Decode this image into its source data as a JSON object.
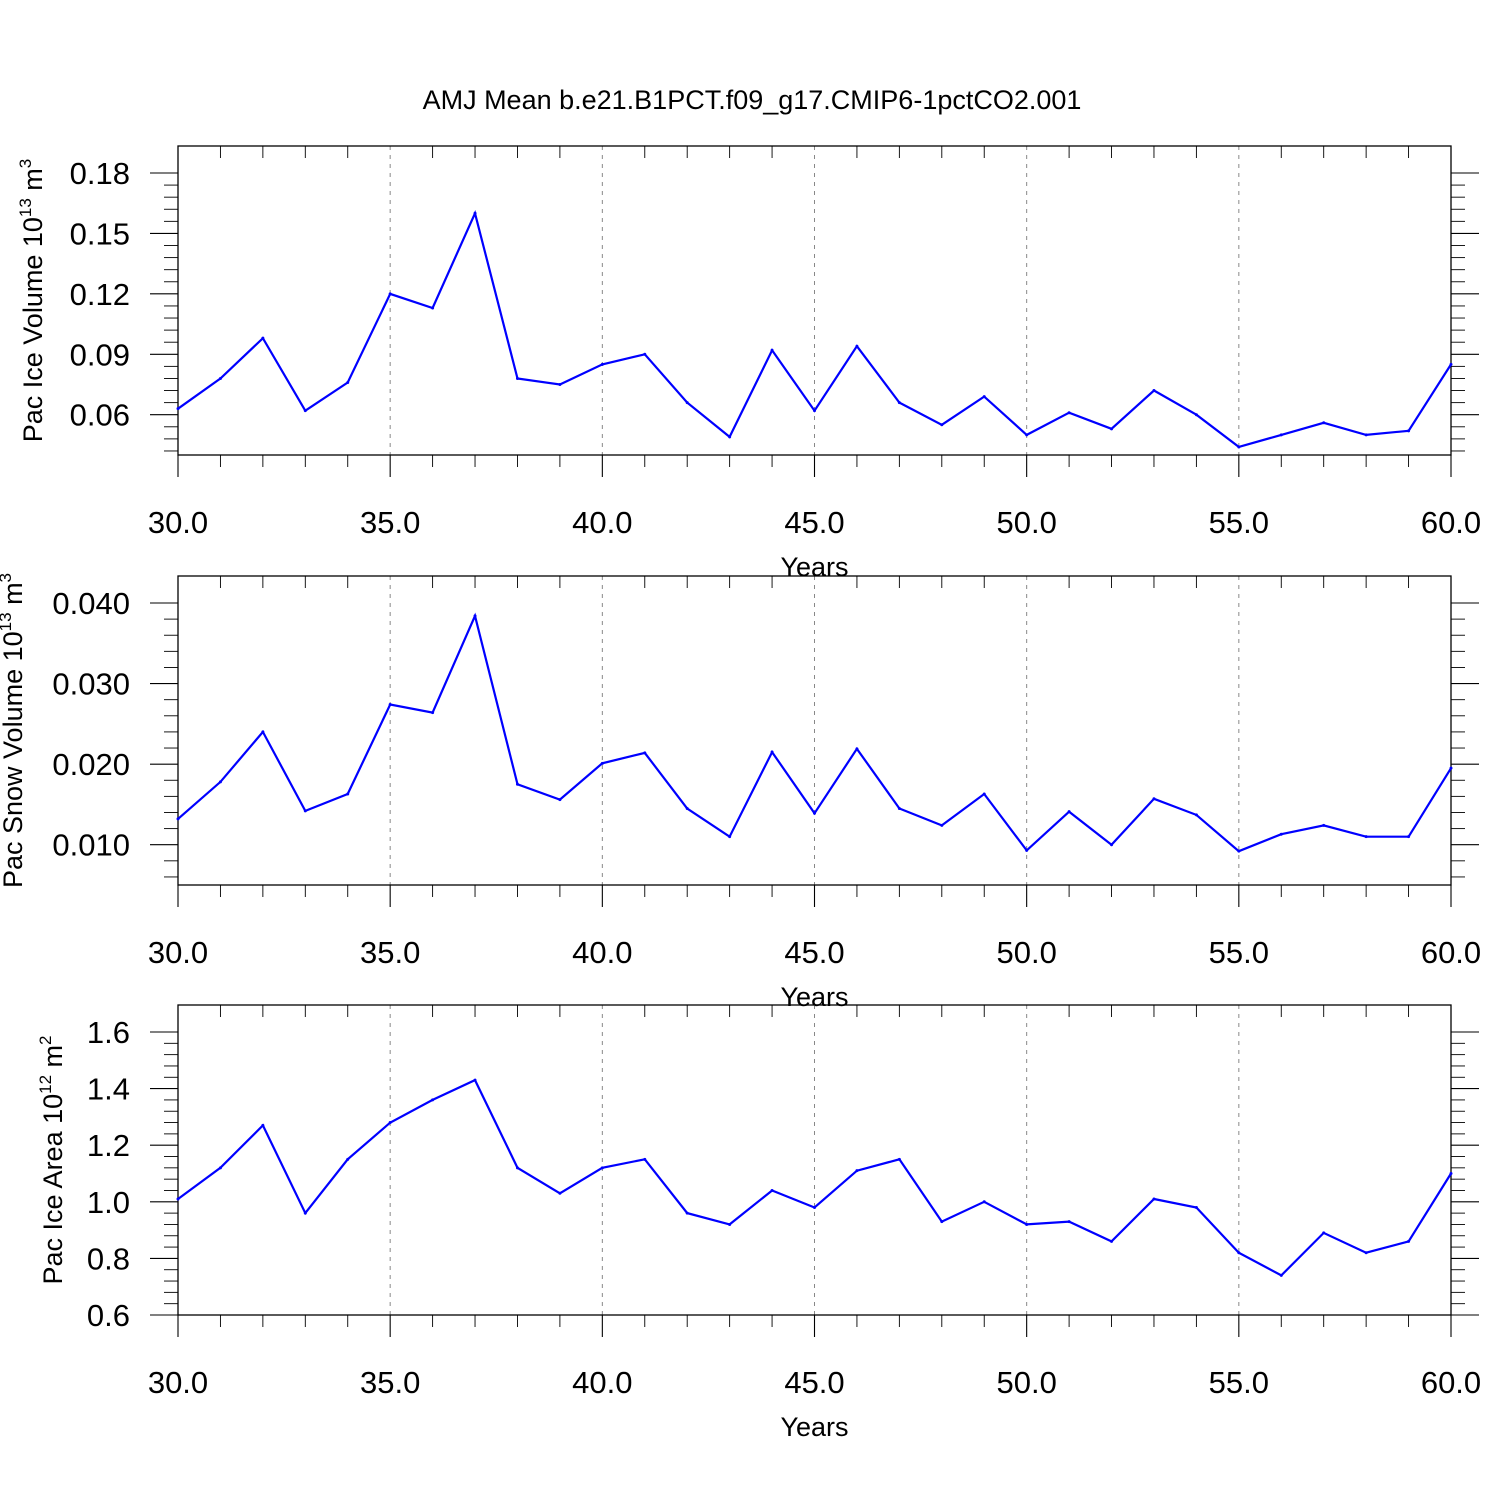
{
  "title": "AMJ Mean b.e21.B1PCT.f09_g17.CMIP6-1pctCO2.001",
  "chart_data": [
    {
      "type": "line",
      "ylabel_main": "Pac Ice Volume 10",
      "ylabel_exp": "13",
      "ylabel_unit": " m",
      "ylabel_unit_exp": "3",
      "xlabel": "Years",
      "xlim": [
        30,
        60
      ],
      "ylim": [
        0.04,
        0.18
      ],
      "yticks": [
        0.06,
        0.09,
        0.12,
        0.15,
        0.18
      ],
      "ytick_labels": [
        "0.06",
        "0.09",
        "0.12",
        "0.15",
        "0.18"
      ],
      "xticks": [
        30,
        35,
        40,
        45,
        50,
        55,
        60
      ],
      "xtick_labels": [
        "30.0",
        "35.0",
        "40.0",
        "45.0",
        "50.0",
        "55.0",
        "60.0"
      ],
      "grid": "dashed vertical at major x ticks",
      "x": [
        30,
        31,
        32,
        33,
        34,
        35,
        36,
        37,
        38,
        39,
        40,
        41,
        42,
        43,
        44,
        45,
        46,
        47,
        48,
        49,
        50,
        51,
        52,
        53,
        54,
        55,
        56,
        57,
        58,
        59,
        60
      ],
      "values": [
        0.063,
        0.078,
        0.098,
        0.062,
        0.076,
        0.12,
        0.113,
        0.16,
        0.078,
        0.075,
        0.085,
        0.09,
        0.066,
        0.049,
        0.092,
        0.062,
        0.094,
        0.066,
        0.055,
        0.069,
        0.05,
        0.061,
        0.053,
        0.072,
        0.06,
        0.044,
        0.05,
        0.056,
        0.05,
        0.052,
        0.085
      ],
      "color": "#0000ff"
    },
    {
      "type": "line",
      "ylabel_main": "Pac Snow Volume 10",
      "ylabel_exp": "13",
      "ylabel_unit": " m",
      "ylabel_unit_exp": "3",
      "xlabel": "Years",
      "xlim": [
        30,
        60
      ],
      "ylim": [
        0.005,
        0.04
      ],
      "yticks": [
        0.01,
        0.02,
        0.03,
        0.04
      ],
      "ytick_labels": [
        "0.010",
        "0.020",
        "0.030",
        "0.040"
      ],
      "xticks": [
        30,
        35,
        40,
        45,
        50,
        55,
        60
      ],
      "xtick_labels": [
        "30.0",
        "35.0",
        "40.0",
        "45.0",
        "50.0",
        "55.0",
        "60.0"
      ],
      "grid": "dashed vertical at major x ticks",
      "x": [
        30,
        31,
        32,
        33,
        34,
        35,
        36,
        37,
        38,
        39,
        40,
        41,
        42,
        43,
        44,
        45,
        46,
        47,
        48,
        49,
        50,
        51,
        52,
        53,
        54,
        55,
        56,
        57,
        58,
        59,
        60
      ],
      "values": [
        0.0132,
        0.0178,
        0.024,
        0.0142,
        0.0163,
        0.0274,
        0.0264,
        0.0384,
        0.0175,
        0.0156,
        0.0201,
        0.0214,
        0.0145,
        0.011,
        0.0215,
        0.0139,
        0.0219,
        0.0145,
        0.0124,
        0.0163,
        0.0093,
        0.0141,
        0.01,
        0.0157,
        0.0137,
        0.0092,
        0.0113,
        0.0124,
        0.011,
        0.011,
        0.0195
      ],
      "color": "#0000ff"
    },
    {
      "type": "line",
      "ylabel_main": "Pac Ice Area 10",
      "ylabel_exp": "12",
      "ylabel_unit": " m",
      "ylabel_unit_exp": "2",
      "xlabel": "Years",
      "xlim": [
        30,
        60
      ],
      "ylim": [
        0.6,
        1.6
      ],
      "yticks": [
        0.6,
        0.8,
        1.0,
        1.2,
        1.4,
        1.6
      ],
      "ytick_labels": [
        "0.6",
        "0.8",
        "1.0",
        "1.2",
        "1.4",
        "1.6"
      ],
      "xticks": [
        30,
        35,
        40,
        45,
        50,
        55,
        60
      ],
      "xtick_labels": [
        "30.0",
        "35.0",
        "40.0",
        "45.0",
        "50.0",
        "55.0",
        "60.0"
      ],
      "grid": "dashed vertical at major x ticks",
      "x": [
        30,
        31,
        32,
        33,
        34,
        35,
        36,
        37,
        38,
        39,
        40,
        41,
        42,
        43,
        44,
        45,
        46,
        47,
        48,
        49,
        50,
        51,
        52,
        53,
        54,
        55,
        56,
        57,
        58,
        59,
        60
      ],
      "values": [
        1.01,
        1.12,
        1.27,
        0.96,
        1.15,
        1.28,
        1.36,
        1.43,
        1.12,
        1.03,
        1.12,
        1.15,
        0.96,
        0.92,
        1.04,
        0.98,
        1.11,
        1.15,
        0.93,
        1.0,
        0.92,
        0.93,
        0.86,
        1.01,
        0.98,
        0.82,
        0.74,
        0.89,
        0.82,
        0.86,
        1.1
      ],
      "color": "#0000ff"
    }
  ]
}
